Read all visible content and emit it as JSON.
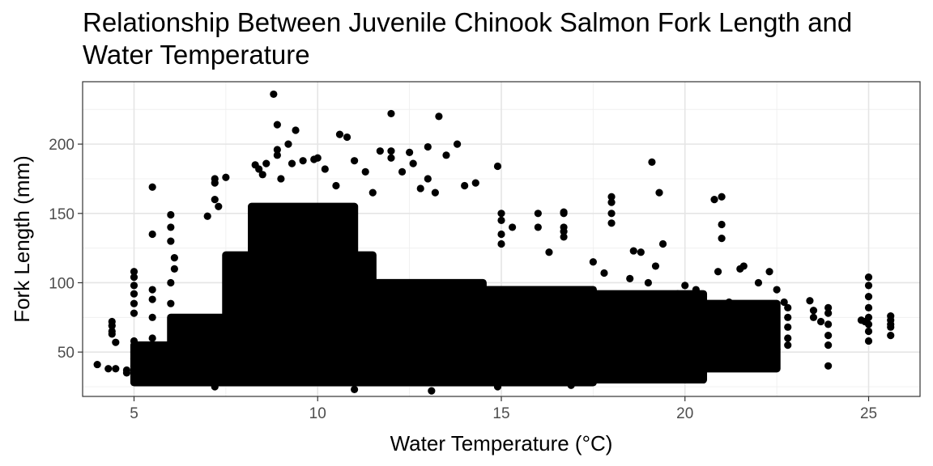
{
  "chart_data": {
    "type": "scatter",
    "title": "Relationship Between Juvenile Chinook Salmon Fork Length and Water Temperature",
    "xlabel": "Water Temperature (°C)",
    "ylabel": "Fork Length (mm)",
    "xlim": [
      3.6,
      26.4
    ],
    "ylim": [
      18,
      245
    ],
    "x_ticks": [
      5,
      10,
      15,
      20,
      25
    ],
    "y_ticks": [
      50,
      100,
      150,
      200
    ],
    "grid": true,
    "legend": "none",
    "point_color": "#000000",
    "points_note_dense_core": "dense cloud approx 25-110 mm across 6-22 °C",
    "points": [
      [
        4.0,
        41
      ],
      [
        4.3,
        38
      ],
      [
        4.5,
        38
      ],
      [
        4.8,
        35
      ],
      [
        4.8,
        37
      ],
      [
        4.4,
        72
      ],
      [
        4.4,
        69
      ],
      [
        4.4,
        63
      ],
      [
        4.5,
        57
      ],
      [
        4.4,
        65
      ],
      [
        5.0,
        108
      ],
      [
        5.0,
        104
      ],
      [
        5.0,
        98
      ],
      [
        5.0,
        92
      ],
      [
        5.0,
        85
      ],
      [
        5.0,
        78
      ],
      [
        5.0,
        58
      ],
      [
        5.0,
        50
      ],
      [
        5.0,
        45
      ],
      [
        5.0,
        40
      ],
      [
        5.5,
        169
      ],
      [
        5.5,
        135
      ],
      [
        5.5,
        95
      ],
      [
        5.5,
        88
      ],
      [
        5.5,
        75
      ],
      [
        5.5,
        60
      ],
      [
        5.5,
        48
      ],
      [
        5.5,
        35
      ],
      [
        6.0,
        149
      ],
      [
        6.0,
        140
      ],
      [
        6.0,
        130
      ],
      [
        6.1,
        118
      ],
      [
        6.1,
        110
      ],
      [
        6.0,
        100
      ],
      [
        6.0,
        85
      ],
      [
        7.2,
        175
      ],
      [
        7.2,
        172
      ],
      [
        7.2,
        160
      ],
      [
        7.5,
        176
      ],
      [
        7.3,
        155
      ],
      [
        7.0,
        148
      ],
      [
        8.3,
        185
      ],
      [
        8.4,
        182
      ],
      [
        8.5,
        178
      ],
      [
        8.6,
        186
      ],
      [
        8.9,
        192
      ],
      [
        8.9,
        196
      ],
      [
        9.3,
        186
      ],
      [
        9.0,
        175
      ],
      [
        8.8,
        236
      ],
      [
        8.9,
        214
      ],
      [
        9.4,
        210
      ],
      [
        9.2,
        200
      ],
      [
        9.6,
        188
      ],
      [
        9.9,
        189
      ],
      [
        10.0,
        190
      ],
      [
        10.2,
        182
      ],
      [
        10.6,
        207
      ],
      [
        10.8,
        205
      ],
      [
        11.0,
        188
      ],
      [
        11.3,
        180
      ],
      [
        11.7,
        195
      ],
      [
        12.0,
        195
      ],
      [
        12.0,
        190
      ],
      [
        12.3,
        180
      ],
      [
        12.0,
        222
      ],
      [
        12.5,
        194
      ],
      [
        13.0,
        198
      ],
      [
        12.6,
        186
      ],
      [
        13.3,
        220
      ],
      [
        13.5,
        192
      ],
      [
        13.8,
        200
      ],
      [
        13.0,
        175
      ],
      [
        14.9,
        184
      ],
      [
        14.0,
        170
      ],
      [
        14.3,
        172
      ],
      [
        13.2,
        165
      ],
      [
        12.8,
        168
      ],
      [
        11.5,
        165
      ],
      [
        10.5,
        170
      ],
      [
        15.0,
        150
      ],
      [
        15.0,
        145
      ],
      [
        15.0,
        135
      ],
      [
        15.0,
        128
      ],
      [
        15.3,
        140
      ],
      [
        16.0,
        150
      ],
      [
        16.0,
        140
      ],
      [
        16.7,
        151
      ],
      [
        16.7,
        150
      ],
      [
        16.7,
        140
      ],
      [
        16.7,
        137
      ],
      [
        16.7,
        133
      ],
      [
        16.3,
        122
      ],
      [
        18.0,
        162
      ],
      [
        18.0,
        158
      ],
      [
        18.0,
        150
      ],
      [
        18.0,
        143
      ],
      [
        17.5,
        115
      ],
      [
        19.1,
        187
      ],
      [
        19.3,
        165
      ],
      [
        19.4,
        128
      ],
      [
        18.8,
        122
      ],
      [
        18.6,
        123
      ],
      [
        19.2,
        112
      ],
      [
        20.8,
        160
      ],
      [
        21.0,
        162
      ],
      [
        21.0,
        142
      ],
      [
        21.0,
        132
      ],
      [
        20.9,
        108
      ],
      [
        21.5,
        110
      ],
      [
        21.6,
        112
      ],
      [
        22.0,
        100
      ],
      [
        22.3,
        108
      ],
      [
        22.5,
        95
      ],
      [
        22.7,
        86
      ],
      [
        22.8,
        82
      ],
      [
        22.8,
        75
      ],
      [
        22.8,
        68
      ],
      [
        22.8,
        60
      ],
      [
        22.8,
        55
      ],
      [
        22.5,
        52
      ],
      [
        22.2,
        48
      ],
      [
        23.4,
        87
      ],
      [
        23.5,
        80
      ],
      [
        23.5,
        75
      ],
      [
        23.7,
        72
      ],
      [
        23.9,
        82
      ],
      [
        23.9,
        78
      ],
      [
        23.9,
        70
      ],
      [
        23.9,
        62
      ],
      [
        23.9,
        55
      ],
      [
        23.9,
        40
      ],
      [
        24.8,
        73
      ],
      [
        24.9,
        72
      ],
      [
        25.0,
        104
      ],
      [
        25.0,
        98
      ],
      [
        25.0,
        90
      ],
      [
        25.0,
        82
      ],
      [
        25.0,
        75
      ],
      [
        25.0,
        70
      ],
      [
        25.0,
        65
      ],
      [
        25.0,
        58
      ],
      [
        25.6,
        76
      ],
      [
        25.6,
        73
      ],
      [
        25.6,
        70
      ],
      [
        25.6,
        68
      ],
      [
        25.6,
        62
      ],
      [
        13.1,
        22
      ],
      [
        7.2,
        25
      ],
      [
        14.9,
        25
      ],
      [
        16.9,
        26
      ],
      [
        11.0,
        23
      ],
      [
        20.0,
        98
      ],
      [
        20.3,
        95
      ],
      [
        19.8,
        92
      ],
      [
        20.5,
        90
      ],
      [
        21.2,
        86
      ],
      [
        19.0,
        100
      ],
      [
        18.5,
        103
      ],
      [
        17.8,
        107
      ]
    ],
    "dense_regions": [
      {
        "x": [
          5.0,
          6.5
        ],
        "y": [
          28,
          55
        ]
      },
      {
        "x": [
          6.0,
          8.0
        ],
        "y": [
          28,
          75
        ]
      },
      {
        "x": [
          7.5,
          11.5
        ],
        "y": [
          28,
          120
        ]
      },
      {
        "x": [
          8.2,
          11.0
        ],
        "y": [
          28,
          155
        ]
      },
      {
        "x": [
          11.0,
          14.5
        ],
        "y": [
          28,
          100
        ]
      },
      {
        "x": [
          14.0,
          17.5
        ],
        "y": [
          28,
          95
        ]
      },
      {
        "x": [
          17.0,
          20.5
        ],
        "y": [
          30,
          92
        ]
      },
      {
        "x": [
          20.0,
          22.5
        ],
        "y": [
          38,
          85
        ]
      }
    ]
  }
}
